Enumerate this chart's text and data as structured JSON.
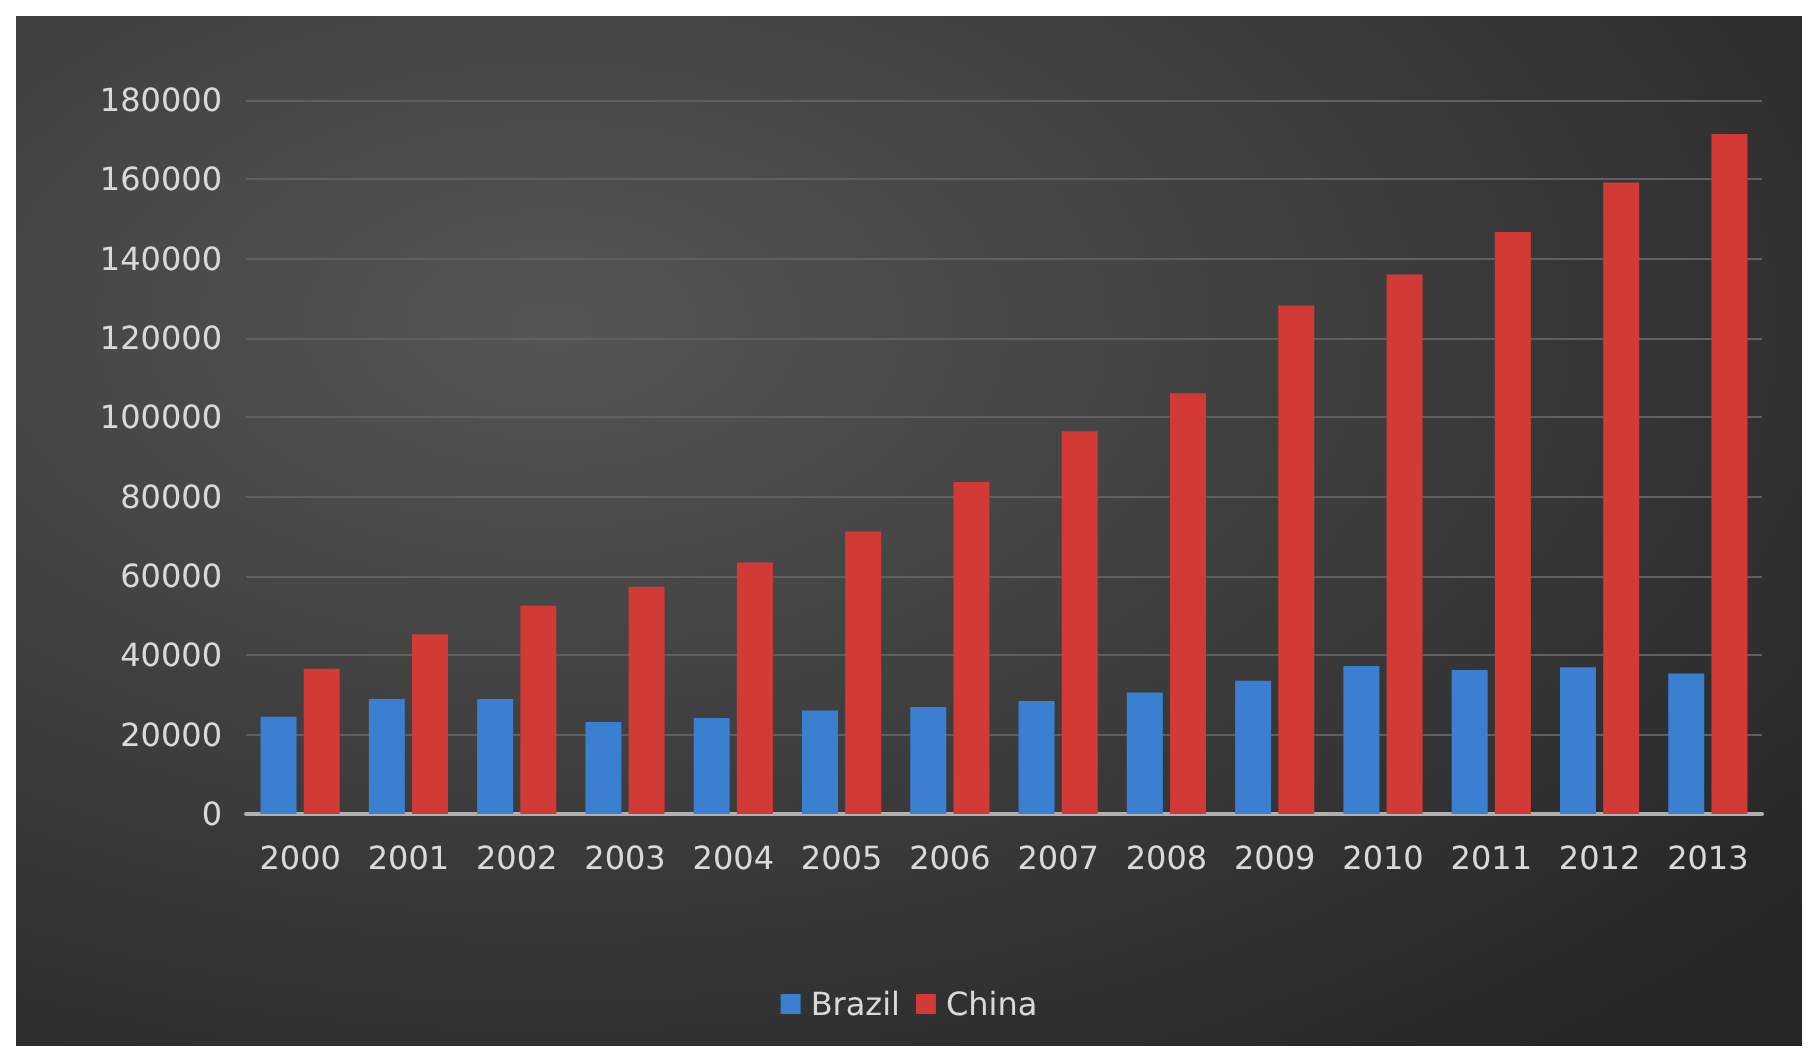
{
  "chart_data": {
    "type": "bar",
    "categories": [
      "2000",
      "2001",
      "2002",
      "2003",
      "2004",
      "2005",
      "2006",
      "2007",
      "2008",
      "2009",
      "2010",
      "2011",
      "2012",
      "2013"
    ],
    "series": [
      {
        "name": "Brazil",
        "color": "#3a7fd0",
        "values": [
          24500,
          29000,
          29000,
          23200,
          24200,
          26100,
          27000,
          28500,
          30600,
          33600,
          37300,
          36300,
          37000,
          35400
        ]
      },
      {
        "name": "China",
        "color": "#d23a36",
        "values": [
          36600,
          45300,
          52500,
          57300,
          63400,
          71200,
          83700,
          96500,
          106100,
          128200,
          136000,
          146700,
          159200,
          171400
        ]
      }
    ],
    "ylim": [
      0,
      180000
    ],
    "yticks": [
      0,
      20000,
      40000,
      60000,
      80000,
      100000,
      120000,
      140000,
      160000,
      180000
    ],
    "grid": "y",
    "legend": "bottom"
  }
}
